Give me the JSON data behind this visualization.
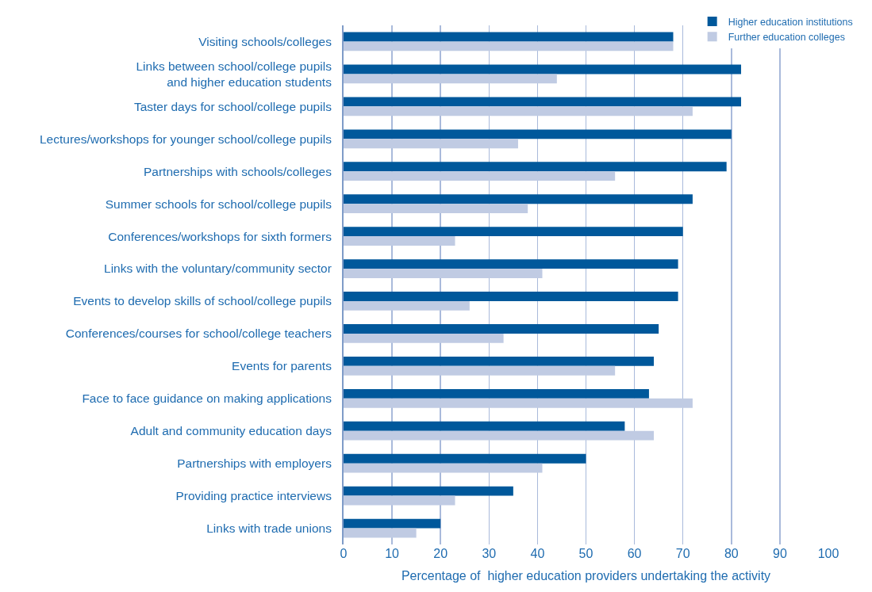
{
  "chart_data": {
    "type": "bar",
    "orientation": "horizontal",
    "xlabel": "Percentage of  higher education providers undertaking the activity",
    "categories": [
      "Visiting schools/colleges",
      "Links between school/college pupils\nand higher education students",
      "Taster days for school/college pupils",
      "Lectures/workshops for younger school/college pupils",
      "Partnerships with schools/colleges",
      "Summer schools for school/college pupils",
      "Conferences/workshops for sixth formers",
      "Links with the voluntary/community sector",
      "Events to develop skills of school/college pupils",
      "Conferences/courses for school/college teachers",
      "Events for parents",
      "Face to face guidance on making applications",
      "Adult and community education days",
      "Partnerships with employers",
      "Providing practice interviews",
      "Links with trade unions"
    ],
    "series": [
      {
        "name": "Higher education institutions",
        "color": "#00589b",
        "values": [
          68,
          82,
          82,
          80,
          79,
          72,
          70,
          69,
          69,
          65,
          64,
          63,
          58,
          50,
          35,
          20
        ]
      },
      {
        "name": "Further education colleges",
        "color": "#c0cbe3",
        "values": [
          68,
          44,
          72,
          36,
          56,
          38,
          23,
          41,
          26,
          33,
          56,
          72,
          64,
          41,
          23,
          15
        ]
      }
    ],
    "xlim": [
      0,
      100
    ],
    "xticks": [
      0,
      10,
      20,
      30,
      40,
      50,
      60,
      70,
      80,
      90,
      100
    ],
    "grid": "x",
    "legend": "top right"
  }
}
